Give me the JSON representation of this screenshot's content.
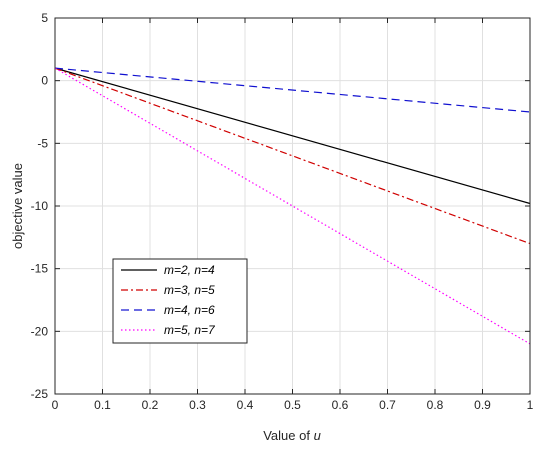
{
  "chart_data": {
    "type": "line",
    "title": "",
    "xlabel_prefix": "Value of ",
    "xlabel_var": "u",
    "ylabel": "objective value",
    "xlim": [
      0,
      1
    ],
    "ylim": [
      -25,
      5
    ],
    "x_ticks": [
      0,
      0.1,
      0.2,
      0.3,
      0.4,
      0.5,
      0.6,
      0.7,
      0.8,
      0.9,
      1
    ],
    "x_tick_labels": [
      "0",
      "0.1",
      "0.2",
      "0.3",
      "0.4",
      "0.5",
      "0.6",
      "0.7",
      "0.8",
      "0.9",
      "1"
    ],
    "y_ticks": [
      5,
      0,
      -5,
      -10,
      -15,
      -20,
      -25
    ],
    "y_tick_labels": [
      "5",
      "0",
      "-5",
      "-10",
      "-15",
      "-20",
      "-25"
    ],
    "grid": true,
    "legend_position": "bottom-left",
    "series": [
      {
        "name": "m=2, n=4",
        "color": "#000000",
        "dash": "solid",
        "x": [
          0,
          1
        ],
        "y": [
          1,
          -9.8
        ]
      },
      {
        "name": "m=3, n=5",
        "color": "#d00000",
        "dash": "dashdot",
        "x": [
          0,
          1
        ],
        "y": [
          1,
          -13
        ]
      },
      {
        "name": "m=4, n=6",
        "color": "#1010d0",
        "dash": "dashed",
        "x": [
          0,
          1
        ],
        "y": [
          1,
          -2.5
        ]
      },
      {
        "name": "m=5, n=7",
        "color": "#ff00ff",
        "dash": "dotted",
        "x": [
          0,
          1
        ],
        "y": [
          1,
          -21
        ]
      }
    ]
  }
}
